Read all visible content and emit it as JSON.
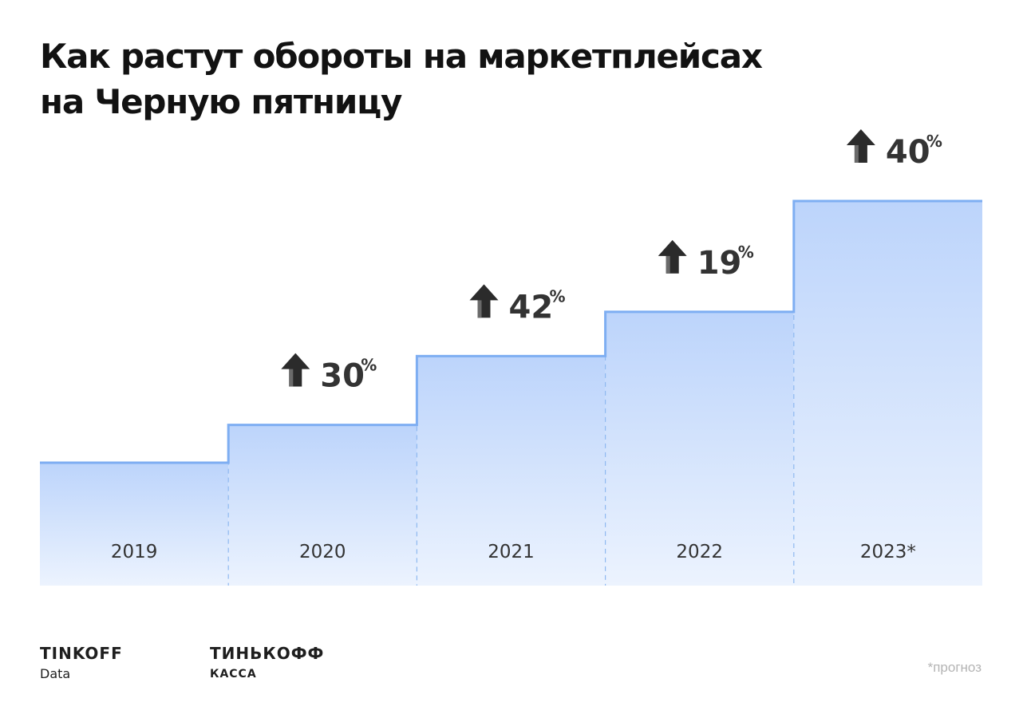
{
  "title": {
    "line1": "Как растут обороты на маркетплейсах",
    "line2": "на Черную пятницу"
  },
  "chart_data": {
    "type": "step-area",
    "categories": [
      "2019",
      "2020",
      "2021",
      "2022",
      "2023*"
    ],
    "index_values": [
      100,
      130,
      184.6,
      219.7,
      307.6
    ],
    "growth_labels": [
      null,
      "30",
      "42",
      "19",
      "40"
    ],
    "growth_unit": "%",
    "growth_icon": "arrow-up-icon",
    "colors": {
      "line": "#7eaef2",
      "fill_top": "#bcd4fb",
      "fill_bottom": "#ecf3fe",
      "divider": "#8fb9f0",
      "text": "#333333"
    }
  },
  "logos": {
    "tinkoff_data": {
      "main": "TINKOFF",
      "sub": "Data"
    },
    "tinkoff_kassa": {
      "main": "ТИНЬКОФФ",
      "sub": "КАССА"
    }
  },
  "footnote": "*прогноз"
}
